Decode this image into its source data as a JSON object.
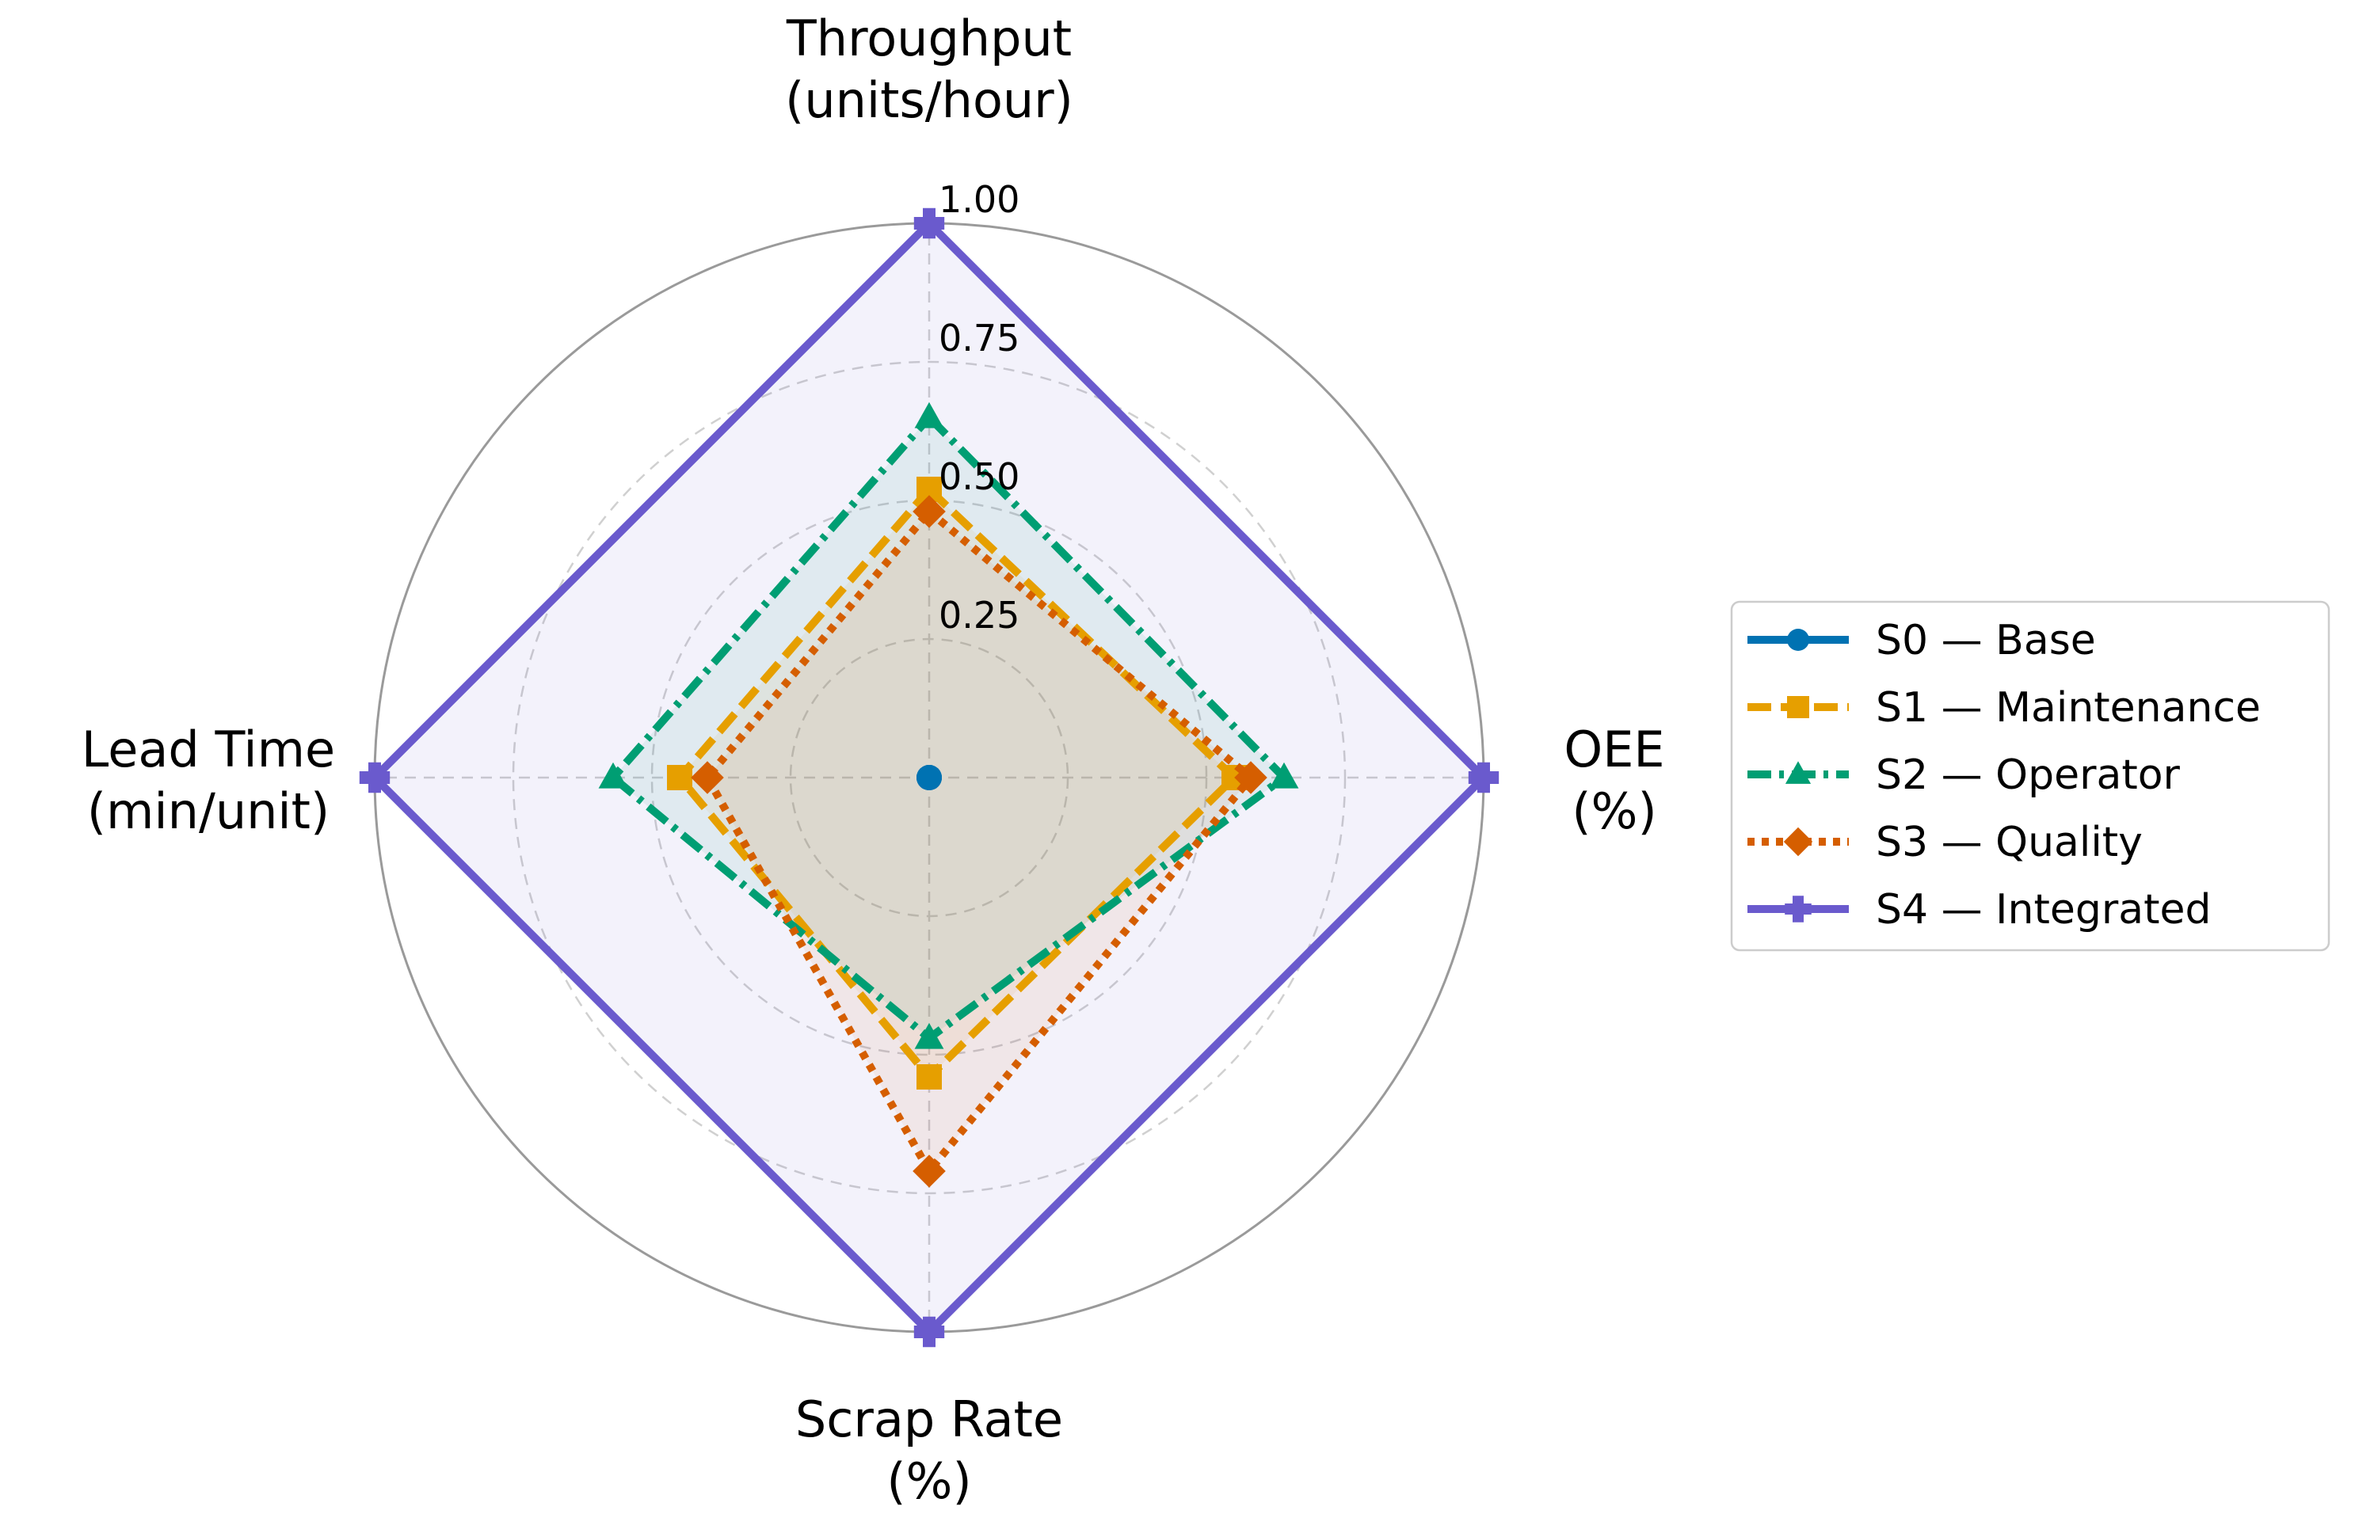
{
  "chart_data": {
    "type": "radar",
    "axes": [
      {
        "line1": "Throughput",
        "line2": "(units/hour)"
      },
      {
        "line1": "OEE",
        "line2": "(%)"
      },
      {
        "line1": "Scrap Rate",
        "line2": "(%)"
      },
      {
        "line1": "Lead Time",
        "line2": "(min/unit)"
      }
    ],
    "rlim": [
      0,
      1
    ],
    "ticks": [
      0.25,
      0.5,
      0.75,
      1.0
    ],
    "tick_labels": [
      "0.25",
      "0.50",
      "0.75",
      "1.00"
    ],
    "grid": true,
    "legend_position": "right",
    "series": [
      {
        "name": "S0 — Base",
        "values": [
          0.0,
          0.0,
          0.0,
          0.0
        ],
        "color": "#0072B2",
        "marker": "circle",
        "dash": "solid"
      },
      {
        "name": "S1 — Maintenance",
        "values": [
          0.52,
          0.55,
          0.54,
          0.45
        ],
        "color": "#E69F00",
        "marker": "square",
        "dash": "dashed"
      },
      {
        "name": "S2 — Operator",
        "values": [
          0.65,
          0.64,
          0.47,
          0.57
        ],
        "color": "#009E73",
        "marker": "triangle",
        "dash": "dashdot"
      },
      {
        "name": "S3 — Quality",
        "values": [
          0.48,
          0.58,
          0.71,
          0.4
        ],
        "color": "#D55E00",
        "marker": "diamond",
        "dash": "dotted"
      },
      {
        "name": "S4 — Integrated",
        "values": [
          1.0,
          1.0,
          1.0,
          1.0
        ],
        "color": "#6A5ACD",
        "marker": "plus",
        "dash": "solid"
      }
    ]
  }
}
